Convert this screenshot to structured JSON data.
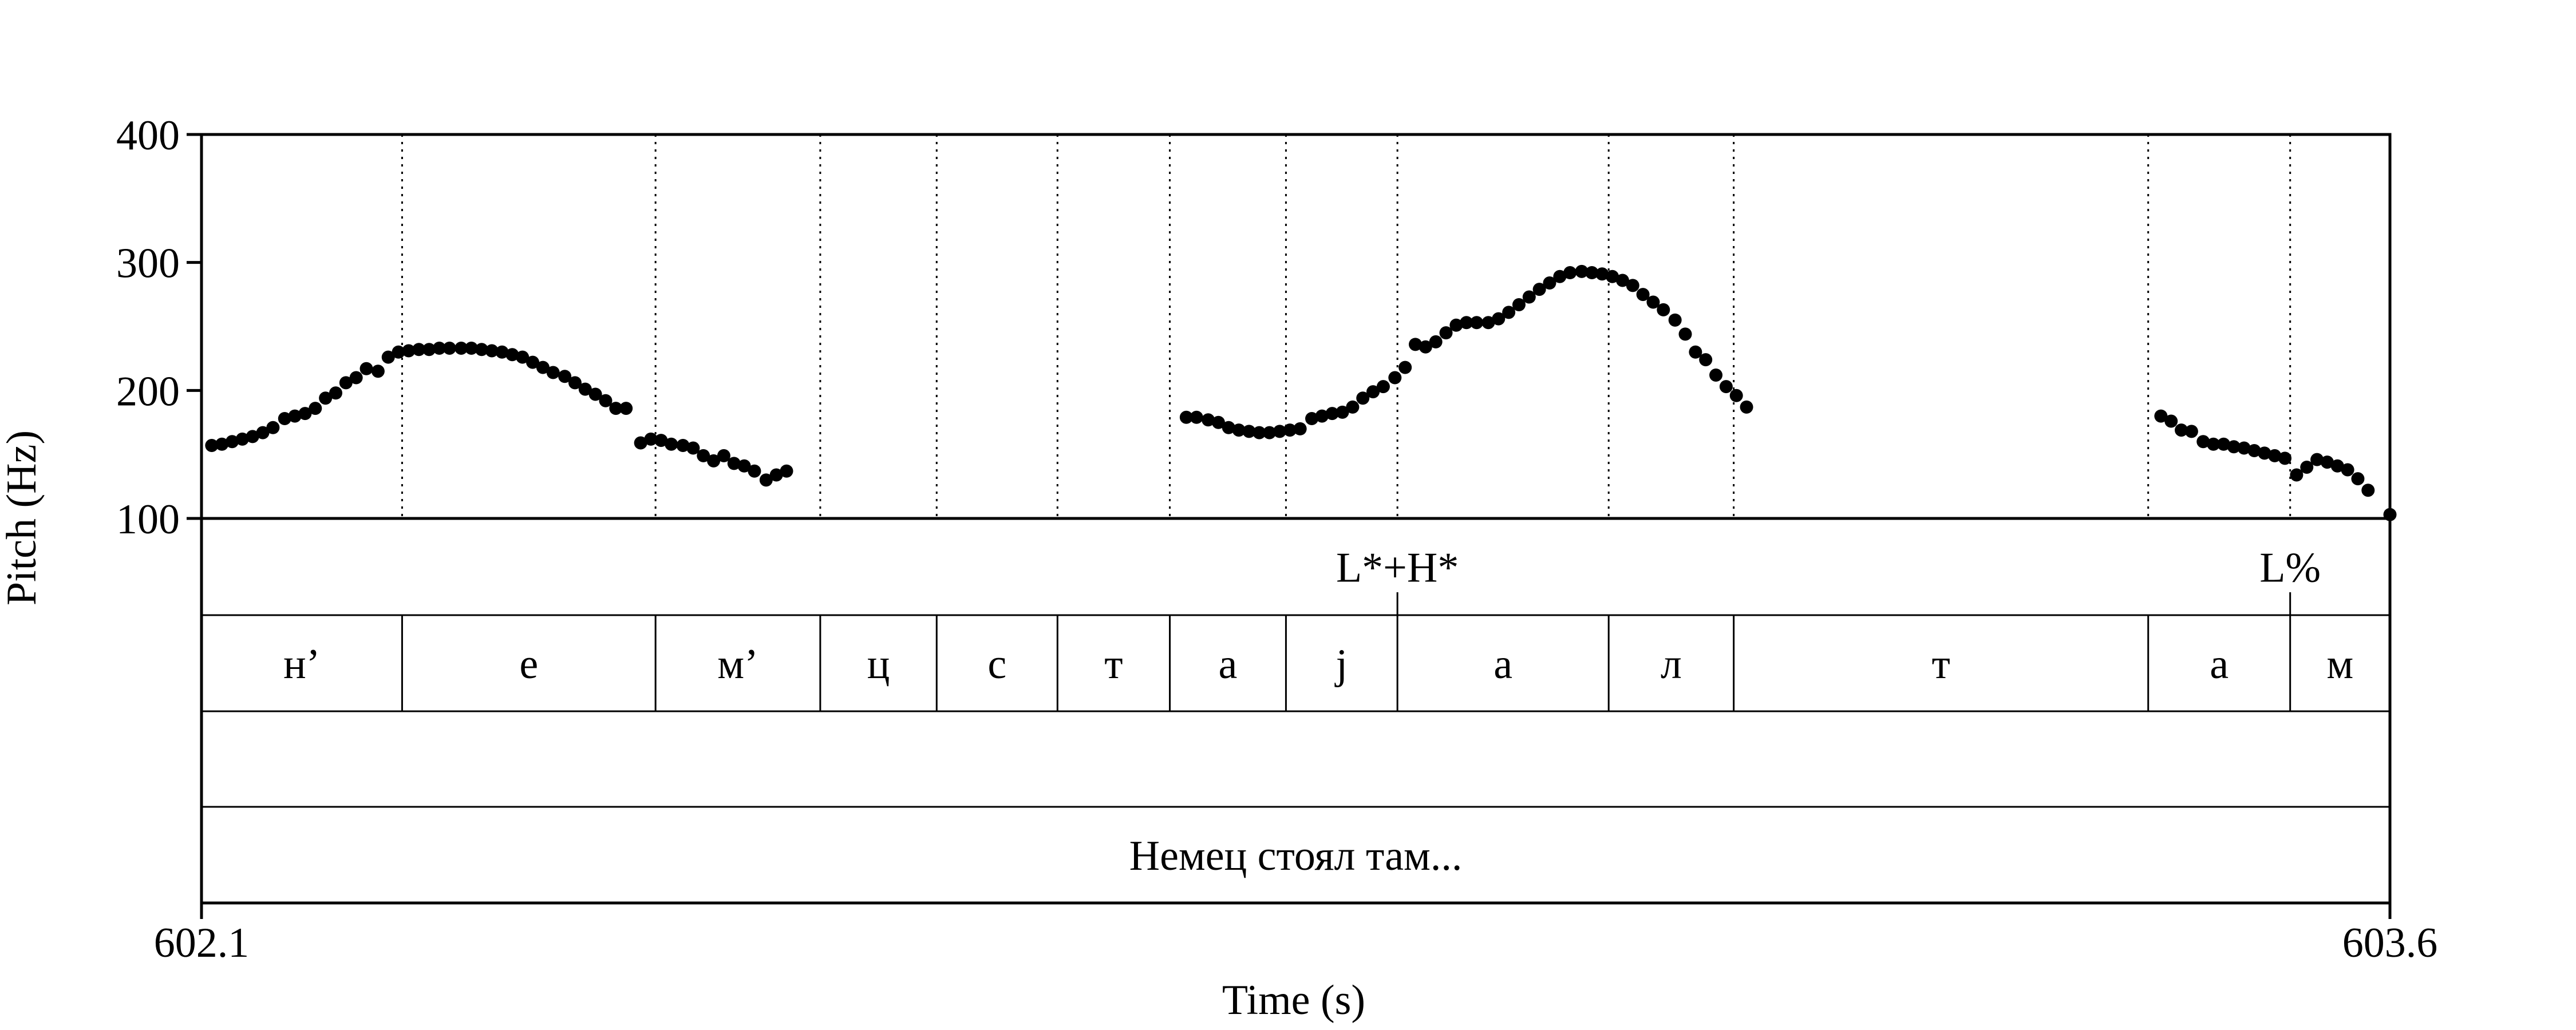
{
  "chart_data": {
    "type": "scatter",
    "xlabel": "Time (s)",
    "ylabel": "Pitch (Hz)",
    "xlim": [
      602.1,
      603.6
    ],
    "ylim": [
      100,
      400
    ],
    "x_tick_labels": [
      "602.1",
      "603.6"
    ],
    "y_tick_labels": [
      "100",
      "200",
      "300",
      "400"
    ],
    "y_ticks": [
      100,
      200,
      300,
      400
    ],
    "boundaries": [
      602.2375,
      602.4112,
      602.5241,
      602.6039,
      602.6867,
      602.7637,
      602.8433,
      602.9197,
      603.0645,
      603.1502,
      603.4343,
      603.5316
    ],
    "tones": [
      {
        "label": "L*+H*",
        "time": 602.9197
      },
      {
        "label": "L%",
        "time": 603.5316
      }
    ],
    "segments": [
      {
        "label": "н’",
        "start": 602.1,
        "end": 602.2375
      },
      {
        "label": "е",
        "start": 602.2375,
        "end": 602.4112
      },
      {
        "label": "м’",
        "start": 602.4112,
        "end": 602.5241
      },
      {
        "label": "ц",
        "start": 602.5241,
        "end": 602.6039
      },
      {
        "label": "с",
        "start": 602.6039,
        "end": 602.6867
      },
      {
        "label": "т",
        "start": 602.6867,
        "end": 602.7637
      },
      {
        "label": "а",
        "start": 602.7637,
        "end": 602.8433
      },
      {
        "label": "j",
        "start": 602.8433,
        "end": 602.9197
      },
      {
        "label": "а",
        "start": 602.9197,
        "end": 603.0645
      },
      {
        "label": "л",
        "start": 603.0645,
        "end": 603.1502
      },
      {
        "label": "т",
        "start": 603.1502,
        "end": 603.4343
      },
      {
        "label": "а",
        "start": 603.4343,
        "end": 603.5316
      },
      {
        "label": "м",
        "start": 603.5316,
        "end": 603.6
      }
    ],
    "sentence": "Немец стоял там...",
    "series": [
      {
        "points": [
          [
            602.107,
            157
          ],
          [
            602.114,
            158
          ],
          [
            602.121,
            160
          ],
          [
            602.128,
            162
          ],
          [
            602.135,
            164
          ],
          [
            602.142,
            167
          ],
          [
            602.149,
            171
          ],
          [
            602.157,
            178
          ],
          [
            602.164,
            180
          ],
          [
            602.171,
            182
          ],
          [
            602.178,
            186
          ],
          [
            602.185,
            194
          ],
          [
            602.192,
            198
          ],
          [
            602.199,
            206
          ],
          [
            602.206,
            210
          ],
          [
            602.213,
            217
          ],
          [
            602.221,
            215
          ],
          [
            602.228,
            226
          ],
          [
            602.235,
            230
          ],
          [
            602.242,
            231
          ],
          [
            602.249,
            232
          ],
          [
            602.256,
            232
          ],
          [
            602.263,
            233
          ],
          [
            602.27,
            233
          ],
          [
            602.278,
            233
          ],
          [
            602.285,
            233
          ],
          [
            602.292,
            232
          ],
          [
            602.299,
            231
          ],
          [
            602.306,
            230
          ],
          [
            602.313,
            228
          ],
          [
            602.32,
            226
          ],
          [
            602.327,
            222
          ],
          [
            602.334,
            218
          ],
          [
            602.341,
            214
          ],
          [
            602.349,
            211
          ],
          [
            602.356,
            206
          ],
          [
            602.363,
            201
          ],
          [
            602.37,
            197
          ],
          [
            602.377,
            192
          ],
          [
            602.384,
            186
          ],
          [
            602.391,
            186
          ],
          [
            602.401,
            159
          ],
          [
            602.408,
            162
          ],
          [
            602.415,
            161
          ],
          [
            602.422,
            158
          ],
          [
            602.43,
            157
          ],
          [
            602.437,
            155
          ],
          [
            602.444,
            149
          ],
          [
            602.451,
            145
          ],
          [
            602.458,
            149
          ],
          [
            602.465,
            143
          ],
          [
            602.472,
            141
          ],
          [
            602.479,
            137
          ],
          [
            602.487,
            130
          ],
          [
            602.494,
            134
          ],
          [
            602.501,
            137
          ],
          [
            602.775,
            179
          ],
          [
            602.782,
            179
          ],
          [
            602.79,
            177
          ],
          [
            602.797,
            175
          ],
          [
            602.804,
            171
          ],
          [
            602.811,
            169
          ],
          [
            602.818,
            168
          ],
          [
            602.825,
            167
          ],
          [
            602.832,
            167
          ],
          [
            602.839,
            168
          ],
          [
            602.846,
            169
          ],
          [
            602.853,
            170
          ],
          [
            602.861,
            178
          ],
          [
            602.868,
            180
          ],
          [
            602.875,
            182
          ],
          [
            602.882,
            183
          ],
          [
            602.889,
            187
          ],
          [
            602.896,
            194
          ],
          [
            602.903,
            199
          ],
          [
            602.91,
            203
          ],
          [
            602.918,
            210
          ],
          [
            602.925,
            218
          ],
          [
            602.932,
            236
          ],
          [
            602.939,
            234
          ],
          [
            602.946,
            238
          ],
          [
            602.953,
            245
          ],
          [
            602.96,
            251
          ],
          [
            602.967,
            253
          ],
          [
            602.974,
            253
          ],
          [
            602.982,
            253
          ],
          [
            602.989,
            256
          ],
          [
            602.996,
            261
          ],
          [
            603.003,
            267
          ],
          [
            603.01,
            273
          ],
          [
            603.017,
            279
          ],
          [
            603.024,
            284
          ],
          [
            603.031,
            289
          ],
          [
            603.038,
            292
          ],
          [
            603.046,
            293
          ],
          [
            603.053,
            292
          ],
          [
            603.06,
            291
          ],
          [
            603.067,
            289
          ],
          [
            603.074,
            286
          ],
          [
            603.081,
            282
          ],
          [
            603.088,
            275
          ],
          [
            603.095,
            269
          ],
          [
            603.102,
            263
          ],
          [
            603.11,
            255
          ],
          [
            603.117,
            244
          ],
          [
            603.124,
            230
          ],
          [
            603.131,
            224
          ],
          [
            603.138,
            212
          ],
          [
            603.145,
            203
          ],
          [
            603.152,
            196
          ],
          [
            603.159,
            187
          ],
          [
            603.443,
            180
          ],
          [
            603.45,
            176
          ],
          [
            603.457,
            169
          ],
          [
            603.464,
            168
          ],
          [
            603.472,
            160
          ],
          [
            603.479,
            158
          ],
          [
            603.486,
            158
          ],
          [
            603.493,
            156
          ],
          [
            603.5,
            155
          ],
          [
            603.507,
            153
          ],
          [
            603.514,
            151
          ],
          [
            603.521,
            149
          ],
          [
            603.528,
            147
          ],
          [
            603.536,
            134
          ],
          [
            603.543,
            140
          ],
          [
            603.55,
            146
          ],
          [
            603.557,
            144
          ],
          [
            603.564,
            141
          ],
          [
            603.571,
            138
          ],
          [
            603.578,
            131
          ],
          [
            603.585,
            122
          ],
          [
            603.6,
            103
          ]
        ]
      }
    ]
  }
}
